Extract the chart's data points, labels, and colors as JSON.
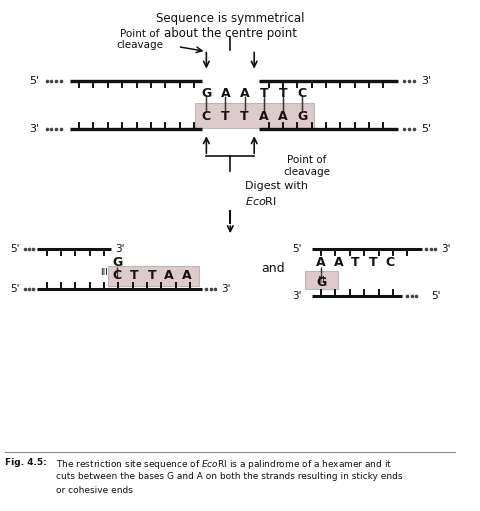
{
  "fig_bg": "#ffffff",
  "title_top": "Sequence is symmetrical\nabout the centre point",
  "highlight_color": "#c8a8a8",
  "line_color": "#111111",
  "text_color": "#111111",
  "dot_color": "#444444",
  "caption_bold": "Fig. 4.5:",
  "caption_rest": "  The restriction site sequence of EcoRI is a palindrome of a hexamer and it\n  cuts between the bases G and A on both the strands resulting in sticky ends\n  or cohesive ends"
}
